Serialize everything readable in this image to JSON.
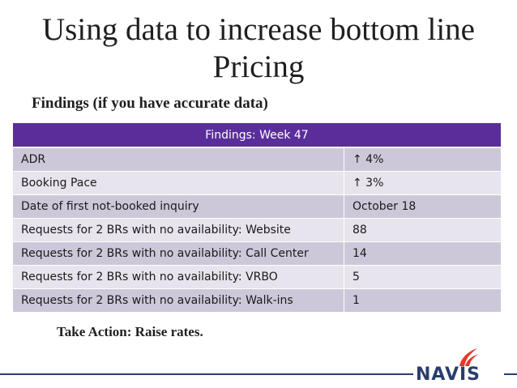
{
  "slide": {
    "title_line1": "Using data to increase bottom line",
    "title_line2": "Pricing",
    "findings_label": "Findings (if you have accurate data)",
    "action_text": "Take Action: Raise rates."
  },
  "table": {
    "header": "Findings: Week 47",
    "rows": [
      {
        "label": "ADR",
        "value": "↑ 4%"
      },
      {
        "label": "Booking Pace",
        "value": "↑ 3%"
      },
      {
        "label": "Date of first not-booked inquiry",
        "value": "October 18"
      },
      {
        "label": "Requests for 2 BRs with no availability: Website",
        "value": "88"
      },
      {
        "label": "Requests for 2 BRs with no availability: Call Center",
        "value": "14"
      },
      {
        "label": "Requests for 2 BRs with no availability: VRBO",
        "value": "5"
      },
      {
        "label": "Requests for 2 BRs with no availability: Walk-ins",
        "value": "1"
      }
    ]
  },
  "logo": {
    "text": "NAVIS",
    "icon": "navis-flame-logo-icon",
    "accent": "#e03a2a",
    "brand": "#2a3d6e"
  },
  "colors": {
    "header_bg": "#5a2e9a",
    "row_dark": "#cdc8d9",
    "row_light": "#e7e4ed"
  }
}
